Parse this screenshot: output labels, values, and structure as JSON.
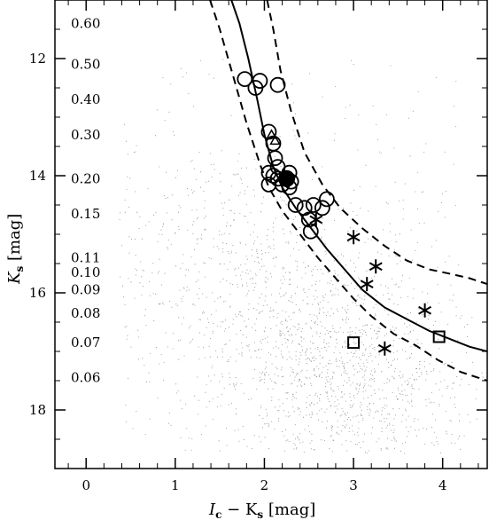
{
  "chart_data": {
    "type": "scatter",
    "xlabel_main": "I",
    "xlabel_sub1": "c",
    "xlabel_mid": " − K",
    "xlabel_sub2": "s",
    "xlabel_unit": " [mag]",
    "ylabel_main": "K",
    "ylabel_sub": "s",
    "ylabel_unit": " [mag]",
    "xlim": [
      -0.35,
      4.5
    ],
    "ylim": [
      19.0,
      11.0
    ],
    "xticks": [
      0,
      1,
      2,
      3,
      4
    ],
    "xtick_labels": [
      "0",
      "1",
      "2",
      "3",
      "4"
    ],
    "yticks": [
      12,
      14,
      16,
      18
    ],
    "ytick_labels": [
      "12",
      "14",
      "16",
      "18"
    ],
    "grid": false,
    "mass_labels": [
      {
        "text": "0.60",
        "y": 11.4
      },
      {
        "text": "0.50",
        "y": 12.1
      },
      {
        "text": "0.40",
        "y": 12.7
      },
      {
        "text": "0.30",
        "y": 13.3
      },
      {
        "text": "0.20",
        "y": 14.05
      },
      {
        "text": "0.15",
        "y": 14.65
      },
      {
        "text": "0.11",
        "y": 15.4
      },
      {
        "text": "0.10",
        "y": 15.65
      },
      {
        "text": "0.09",
        "y": 15.95
      },
      {
        "text": "0.08",
        "y": 16.35
      },
      {
        "text": "0.07",
        "y": 16.85
      },
      {
        "text": "0.06",
        "y": 17.45
      }
    ],
    "isochrone": {
      "x": [
        1.63,
        1.72,
        1.82,
        1.92,
        2.0,
        2.1,
        2.2,
        2.35,
        2.5,
        2.7,
        2.9,
        3.1,
        3.35,
        3.6,
        3.85,
        4.1,
        4.3,
        4.5
      ],
      "y": [
        11.0,
        11.4,
        12.0,
        12.7,
        13.3,
        13.85,
        14.2,
        14.55,
        14.85,
        15.25,
        15.6,
        15.95,
        16.25,
        16.45,
        16.65,
        16.8,
        16.92,
        17.0
      ]
    },
    "boundary_left": {
      "x": [
        1.39,
        1.5,
        1.65,
        1.8,
        1.95,
        2.05,
        2.2,
        2.4,
        2.6,
        2.8,
        3.0,
        3.2,
        3.45,
        3.7,
        3.95,
        4.2,
        4.5
      ],
      "y": [
        11.0,
        11.5,
        12.3,
        13.1,
        13.8,
        14.2,
        14.6,
        15.0,
        15.4,
        15.75,
        16.1,
        16.4,
        16.7,
        16.9,
        17.15,
        17.35,
        17.5
      ]
    },
    "boundary_right": {
      "x": [
        2.03,
        2.1,
        2.18,
        2.3,
        2.45,
        2.65,
        2.85,
        3.1,
        3.35,
        3.6,
        3.85,
        4.1,
        4.3,
        4.5
      ],
      "y": [
        11.0,
        11.5,
        12.2,
        12.9,
        13.6,
        14.15,
        14.55,
        14.9,
        15.2,
        15.45,
        15.6,
        15.68,
        15.75,
        15.85
      ]
    },
    "circles": {
      "x": [
        1.78,
        1.95,
        1.9,
        2.15,
        2.05,
        2.1,
        2.12,
        2.15,
        2.05,
        2.1,
        2.15,
        2.28,
        2.05,
        2.25,
        2.2,
        2.3,
        2.28,
        2.35,
        2.45,
        2.55,
        2.5,
        2.65,
        2.7,
        2.52
      ],
      "y": [
        12.35,
        12.38,
        12.5,
        12.45,
        13.25,
        13.45,
        13.7,
        13.85,
        13.95,
        14.0,
        14.05,
        13.95,
        14.15,
        14.05,
        14.15,
        14.1,
        14.2,
        14.5,
        14.55,
        14.5,
        14.75,
        14.55,
        14.4,
        14.95
      ]
    },
    "filled_circles": {
      "x": [
        2.25
      ],
      "y": [
        14.05
      ]
    },
    "triangles": {
      "x": [
        2.08,
        2.12
      ],
      "y": [
        13.3,
        13.4
      ]
    },
    "asterisks": {
      "x": [
        2.58,
        3.0,
        3.25,
        3.15,
        3.8,
        3.35
      ],
      "y": [
        14.75,
        15.05,
        15.55,
        15.85,
        16.3,
        16.95
      ]
    },
    "squares": {
      "x": [
        3.0,
        3.96
      ],
      "y": [
        16.85,
        16.75
      ]
    }
  }
}
